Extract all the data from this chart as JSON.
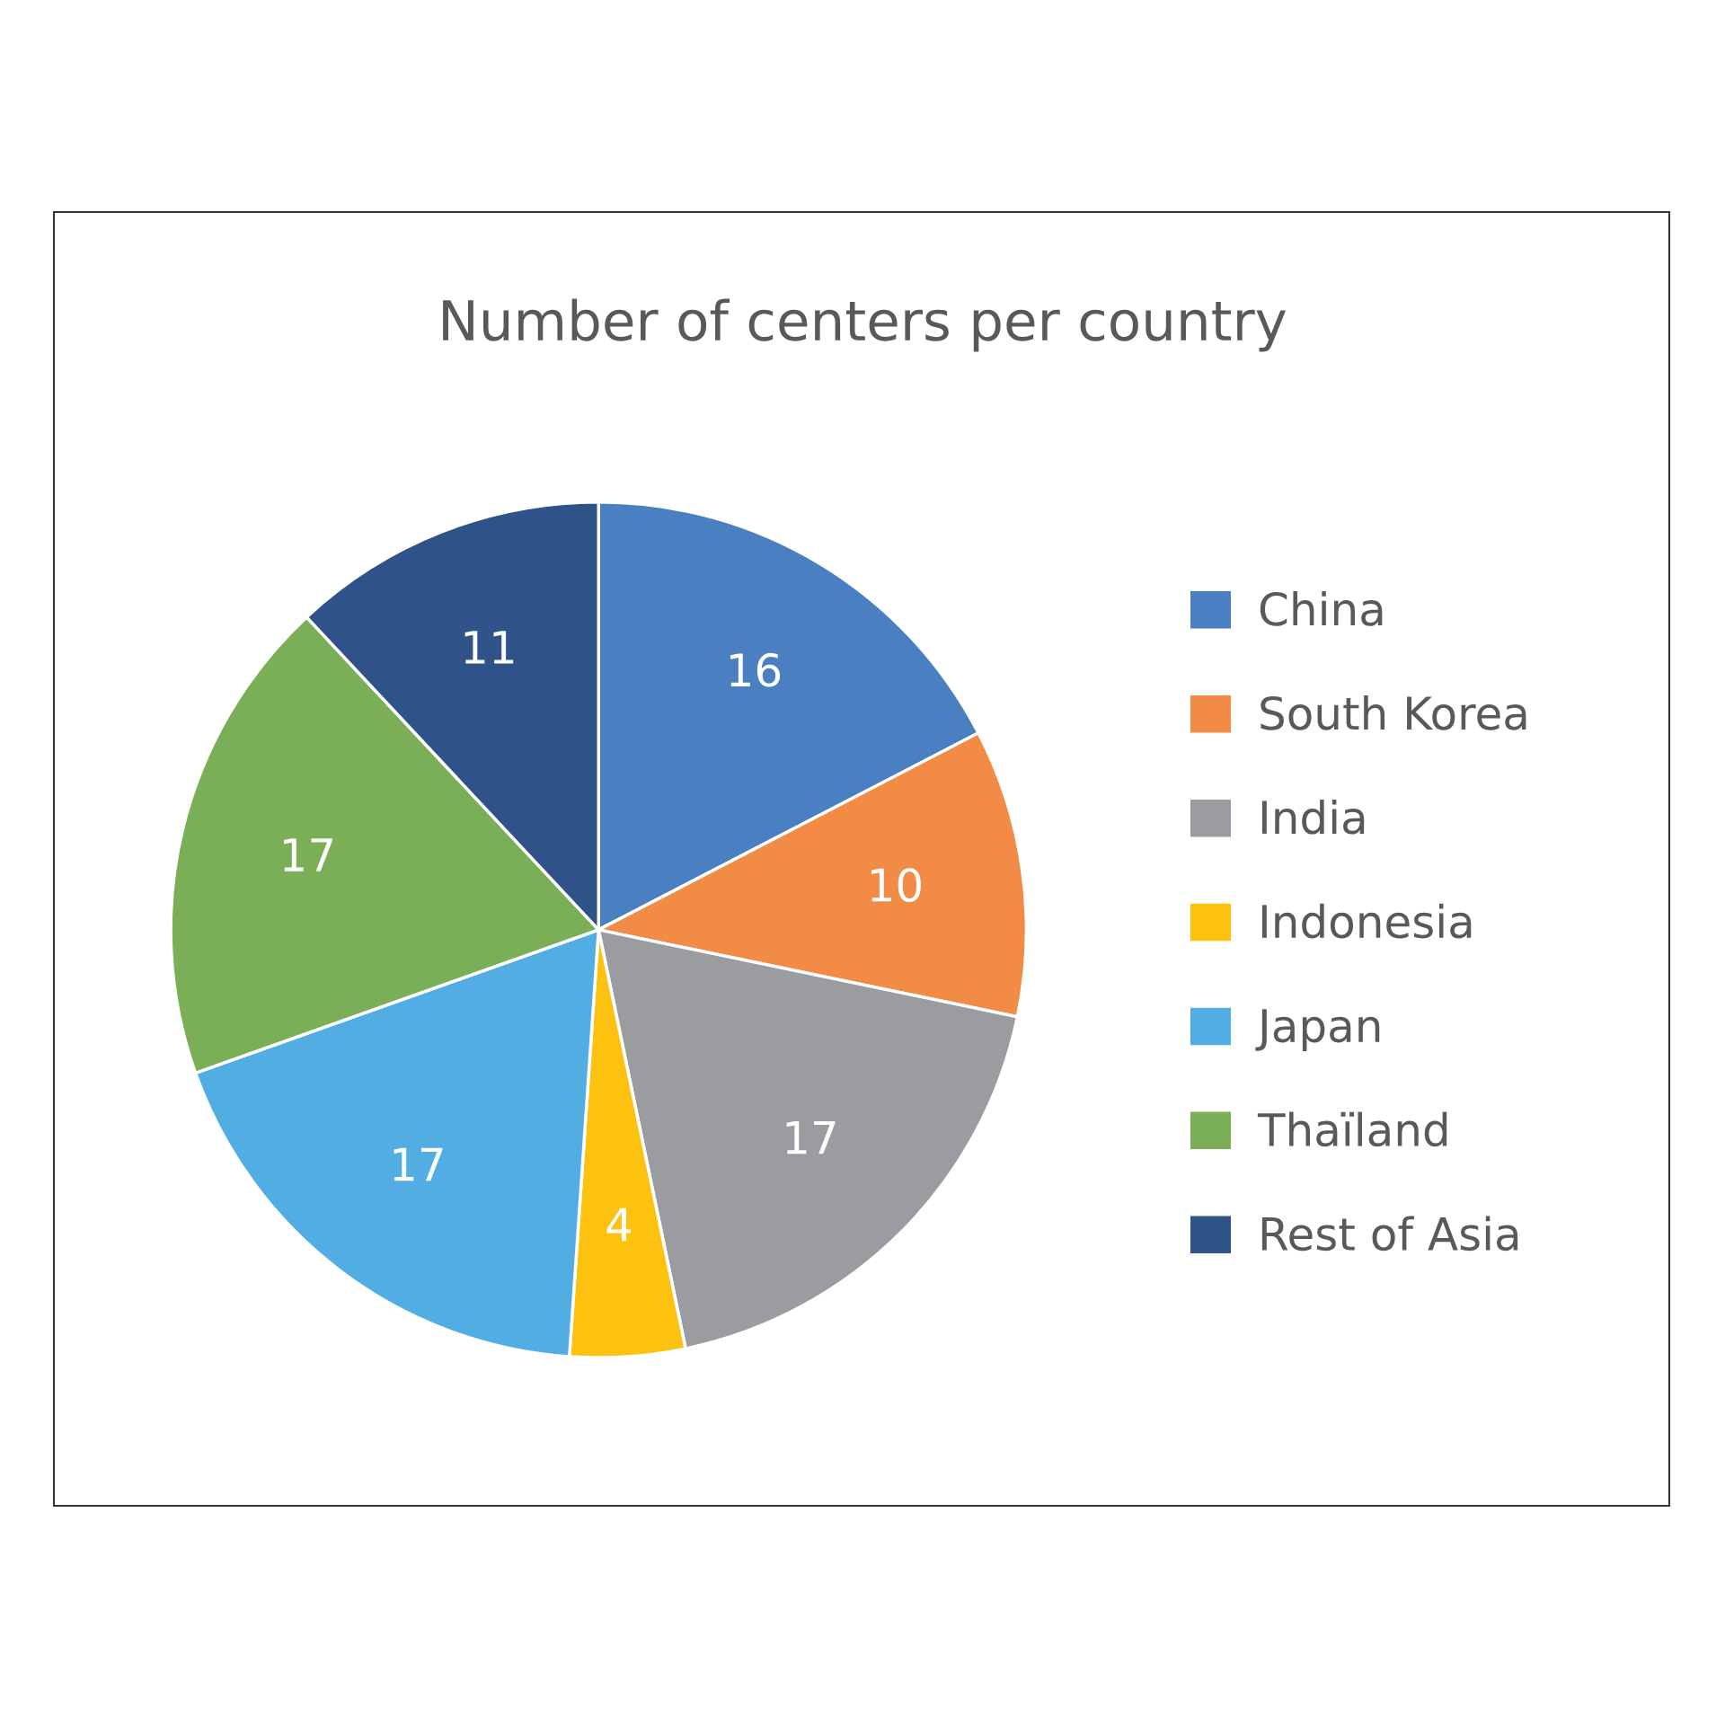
{
  "chart_data": {
    "type": "pie",
    "title": "Number of centers per country",
    "categories": [
      "China",
      "South Korea",
      "India",
      "Indonesia",
      "Japan",
      "Thaïland",
      "Rest of Asia"
    ],
    "values": [
      16,
      10,
      17,
      4,
      17,
      17,
      11
    ],
    "colors": [
      "#4a7fc1",
      "#f18b45",
      "#9a9c9f",
      "#fdc20f",
      "#52aee2",
      "#7aaf57",
      "#2f5288"
    ],
    "data_labels": true,
    "legend": "right"
  }
}
